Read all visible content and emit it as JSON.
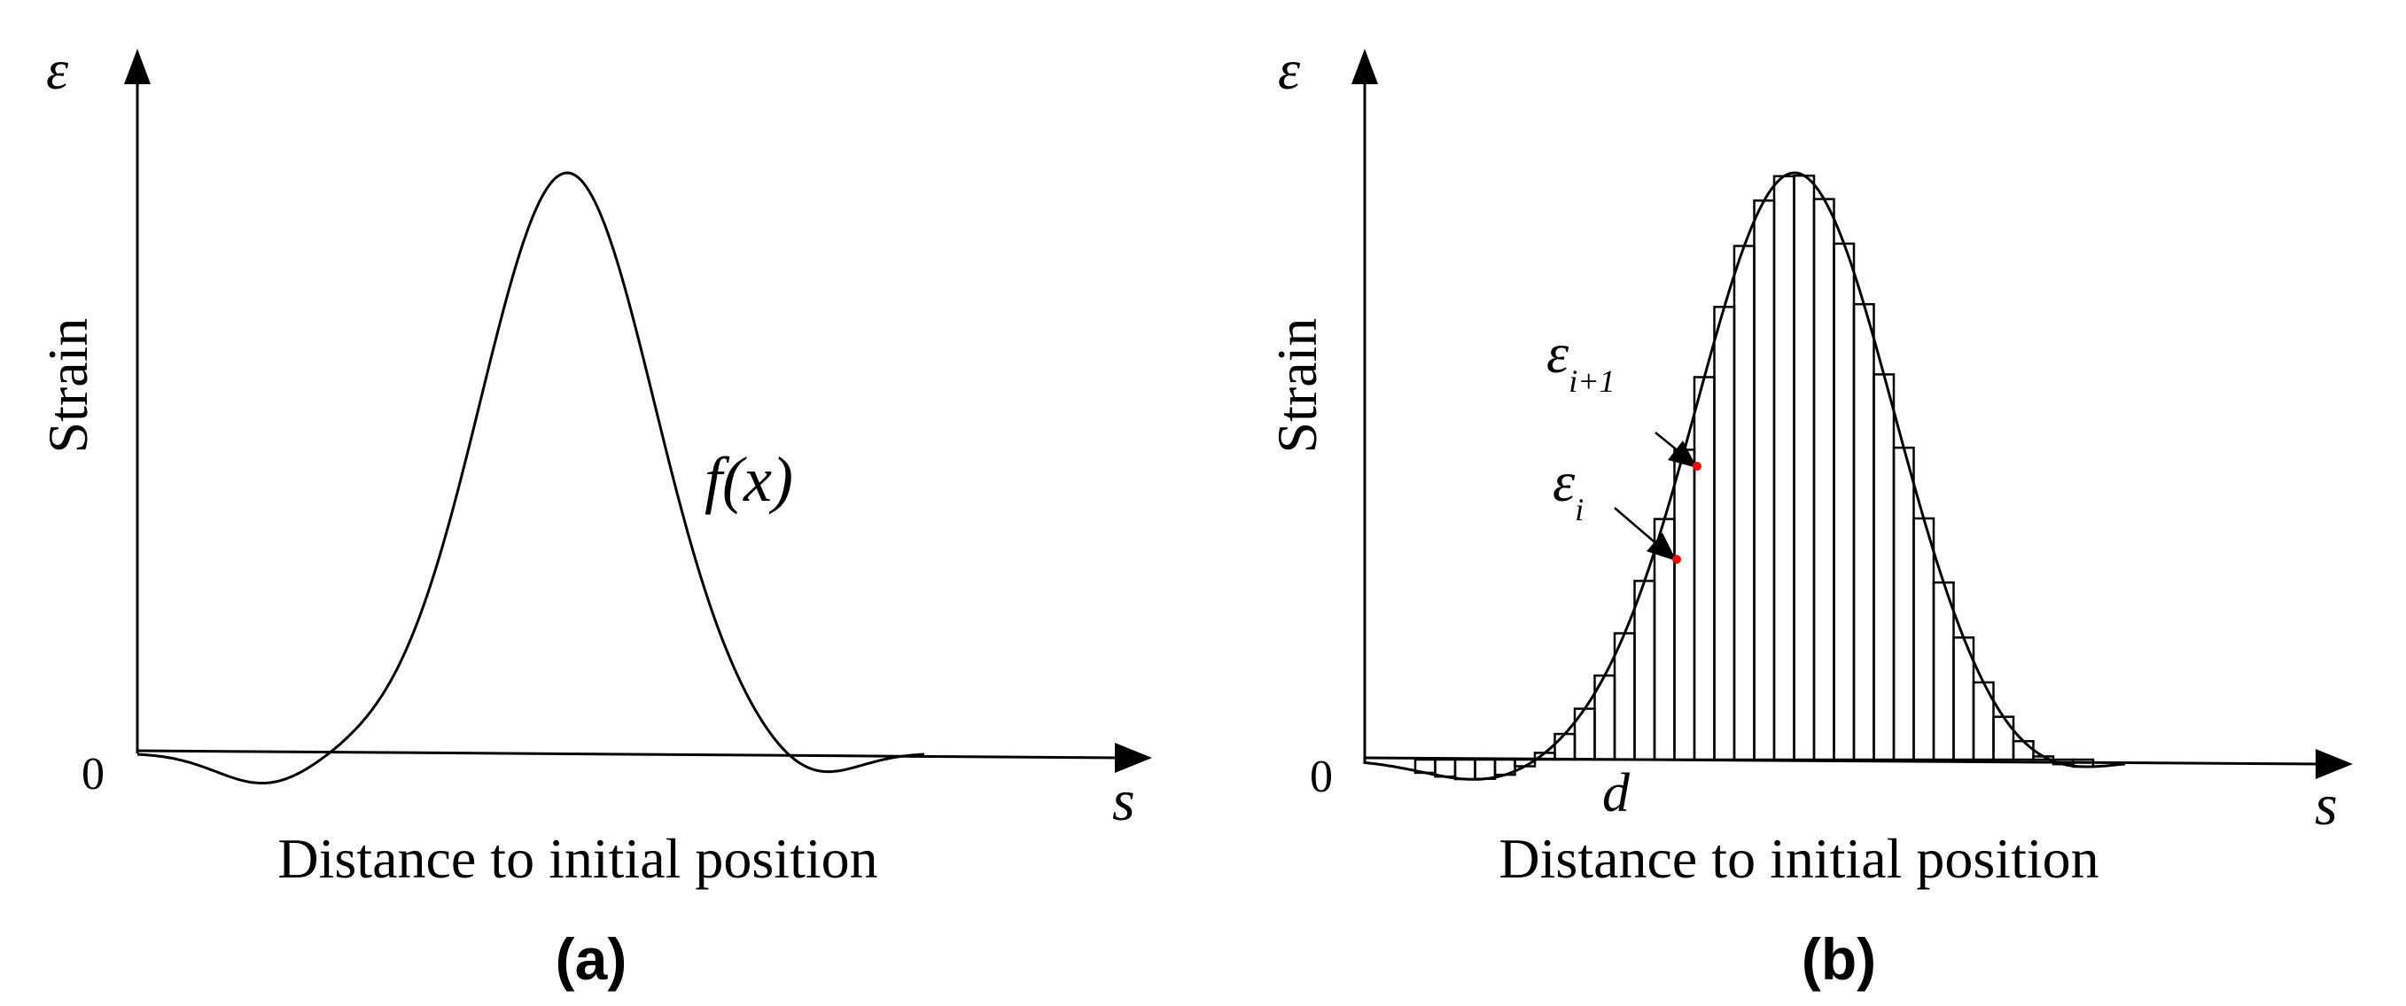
{
  "panel_a": {
    "caption": "(a)",
    "y_symbol": "ε",
    "y_label": "Strain",
    "x_symbol": "s",
    "x_label": "Distance to initial position",
    "origin_label": "0",
    "curve_label": "f(x)"
  },
  "panel_b": {
    "caption": "(b)",
    "y_symbol": "ε",
    "y_label": "Strain",
    "x_symbol": "s",
    "x_label": "Distance to initial position",
    "origin_label": "0",
    "interval_label": "d",
    "annotations": {
      "eps_i": {
        "base": "ε",
        "sub": "i"
      },
      "eps_i1": {
        "base": "ε",
        "sub": "i+1"
      }
    }
  },
  "colors": {
    "line": "#000000",
    "marker": "#ff0000",
    "background": "#ffffff"
  }
}
